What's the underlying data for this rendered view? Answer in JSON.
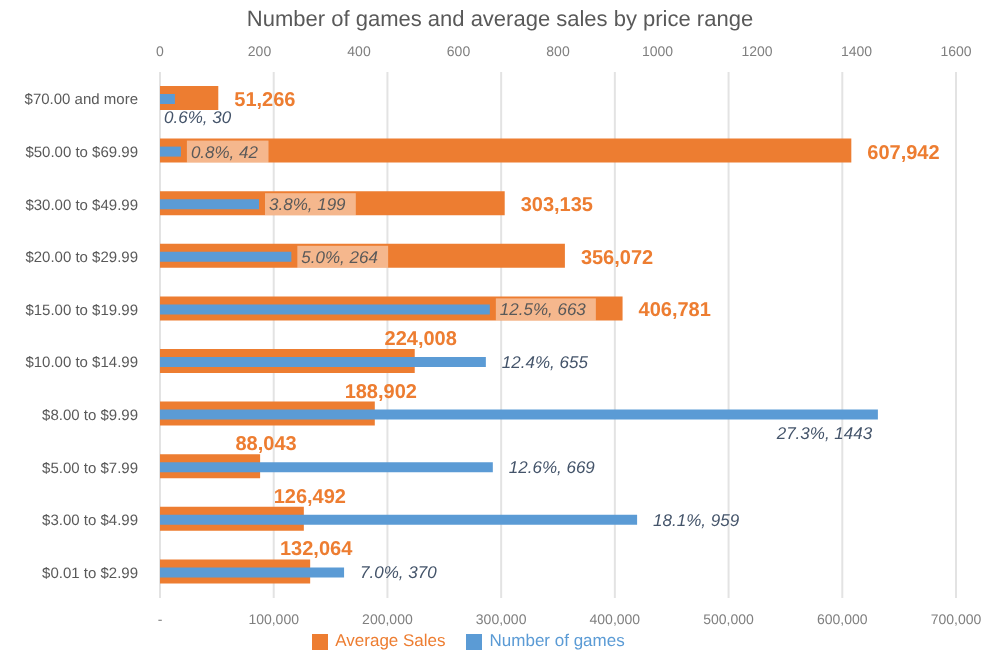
{
  "chart_data": {
    "type": "bar",
    "orientation": "horizontal",
    "title": "Number of games and average sales by price range",
    "categories": [
      "$70.00 and more",
      "$50.00 to $69.99",
      "$30.00 to $49.99",
      "$20.00 to $29.99",
      "$15.00 to $19.99",
      "$10.00 to $14.99",
      "$8.00 to $9.99",
      "$5.00 to $7.99",
      "$3.00 to $4.99",
      "$0.01 to $2.99"
    ],
    "series": [
      {
        "name": "Average Sales",
        "color": "#ed7d31",
        "values": [
          51266,
          607942,
          303135,
          356072,
          406781,
          224008,
          188902,
          88043,
          126492,
          132064
        ],
        "value_labels": [
          "51,266",
          "607,942",
          "303,135",
          "356,072",
          "406,781",
          "224,008",
          "188,902",
          "88,043",
          "126,492",
          "132,064"
        ]
      },
      {
        "name": "Number of games",
        "color": "#5b9bd5",
        "axis": "x2",
        "values": [
          30,
          42,
          199,
          264,
          663,
          655,
          1443,
          669,
          959,
          370
        ],
        "value_labels": [
          "0.6%, 30",
          "0.8%, 42",
          "3.8%, 199",
          "5.0%, 264",
          "12.5%, 663",
          "12.4%, 655",
          "27.3%, 1443",
          "12.6%, 669",
          "18.1%, 959",
          "7.0%, 370"
        ]
      }
    ],
    "xlim": [
      0,
      700000
    ],
    "xticks": [
      {
        "value": 0,
        "label": "-"
      },
      {
        "value": 100000,
        "label": "100,000"
      },
      {
        "value": 200000,
        "label": "200,000"
      },
      {
        "value": 300000,
        "label": "300,000"
      },
      {
        "value": 400000,
        "label": "400,000"
      },
      {
        "value": 500000,
        "label": "500,000"
      },
      {
        "value": 600000,
        "label": "600,000"
      },
      {
        "value": 700000,
        "label": "700,000"
      }
    ],
    "x2lim": [
      0,
      1600
    ],
    "x2ticks": [
      0,
      200,
      400,
      600,
      800,
      1000,
      1200,
      1400,
      1600
    ],
    "grid": "x",
    "legend": "bottom"
  }
}
